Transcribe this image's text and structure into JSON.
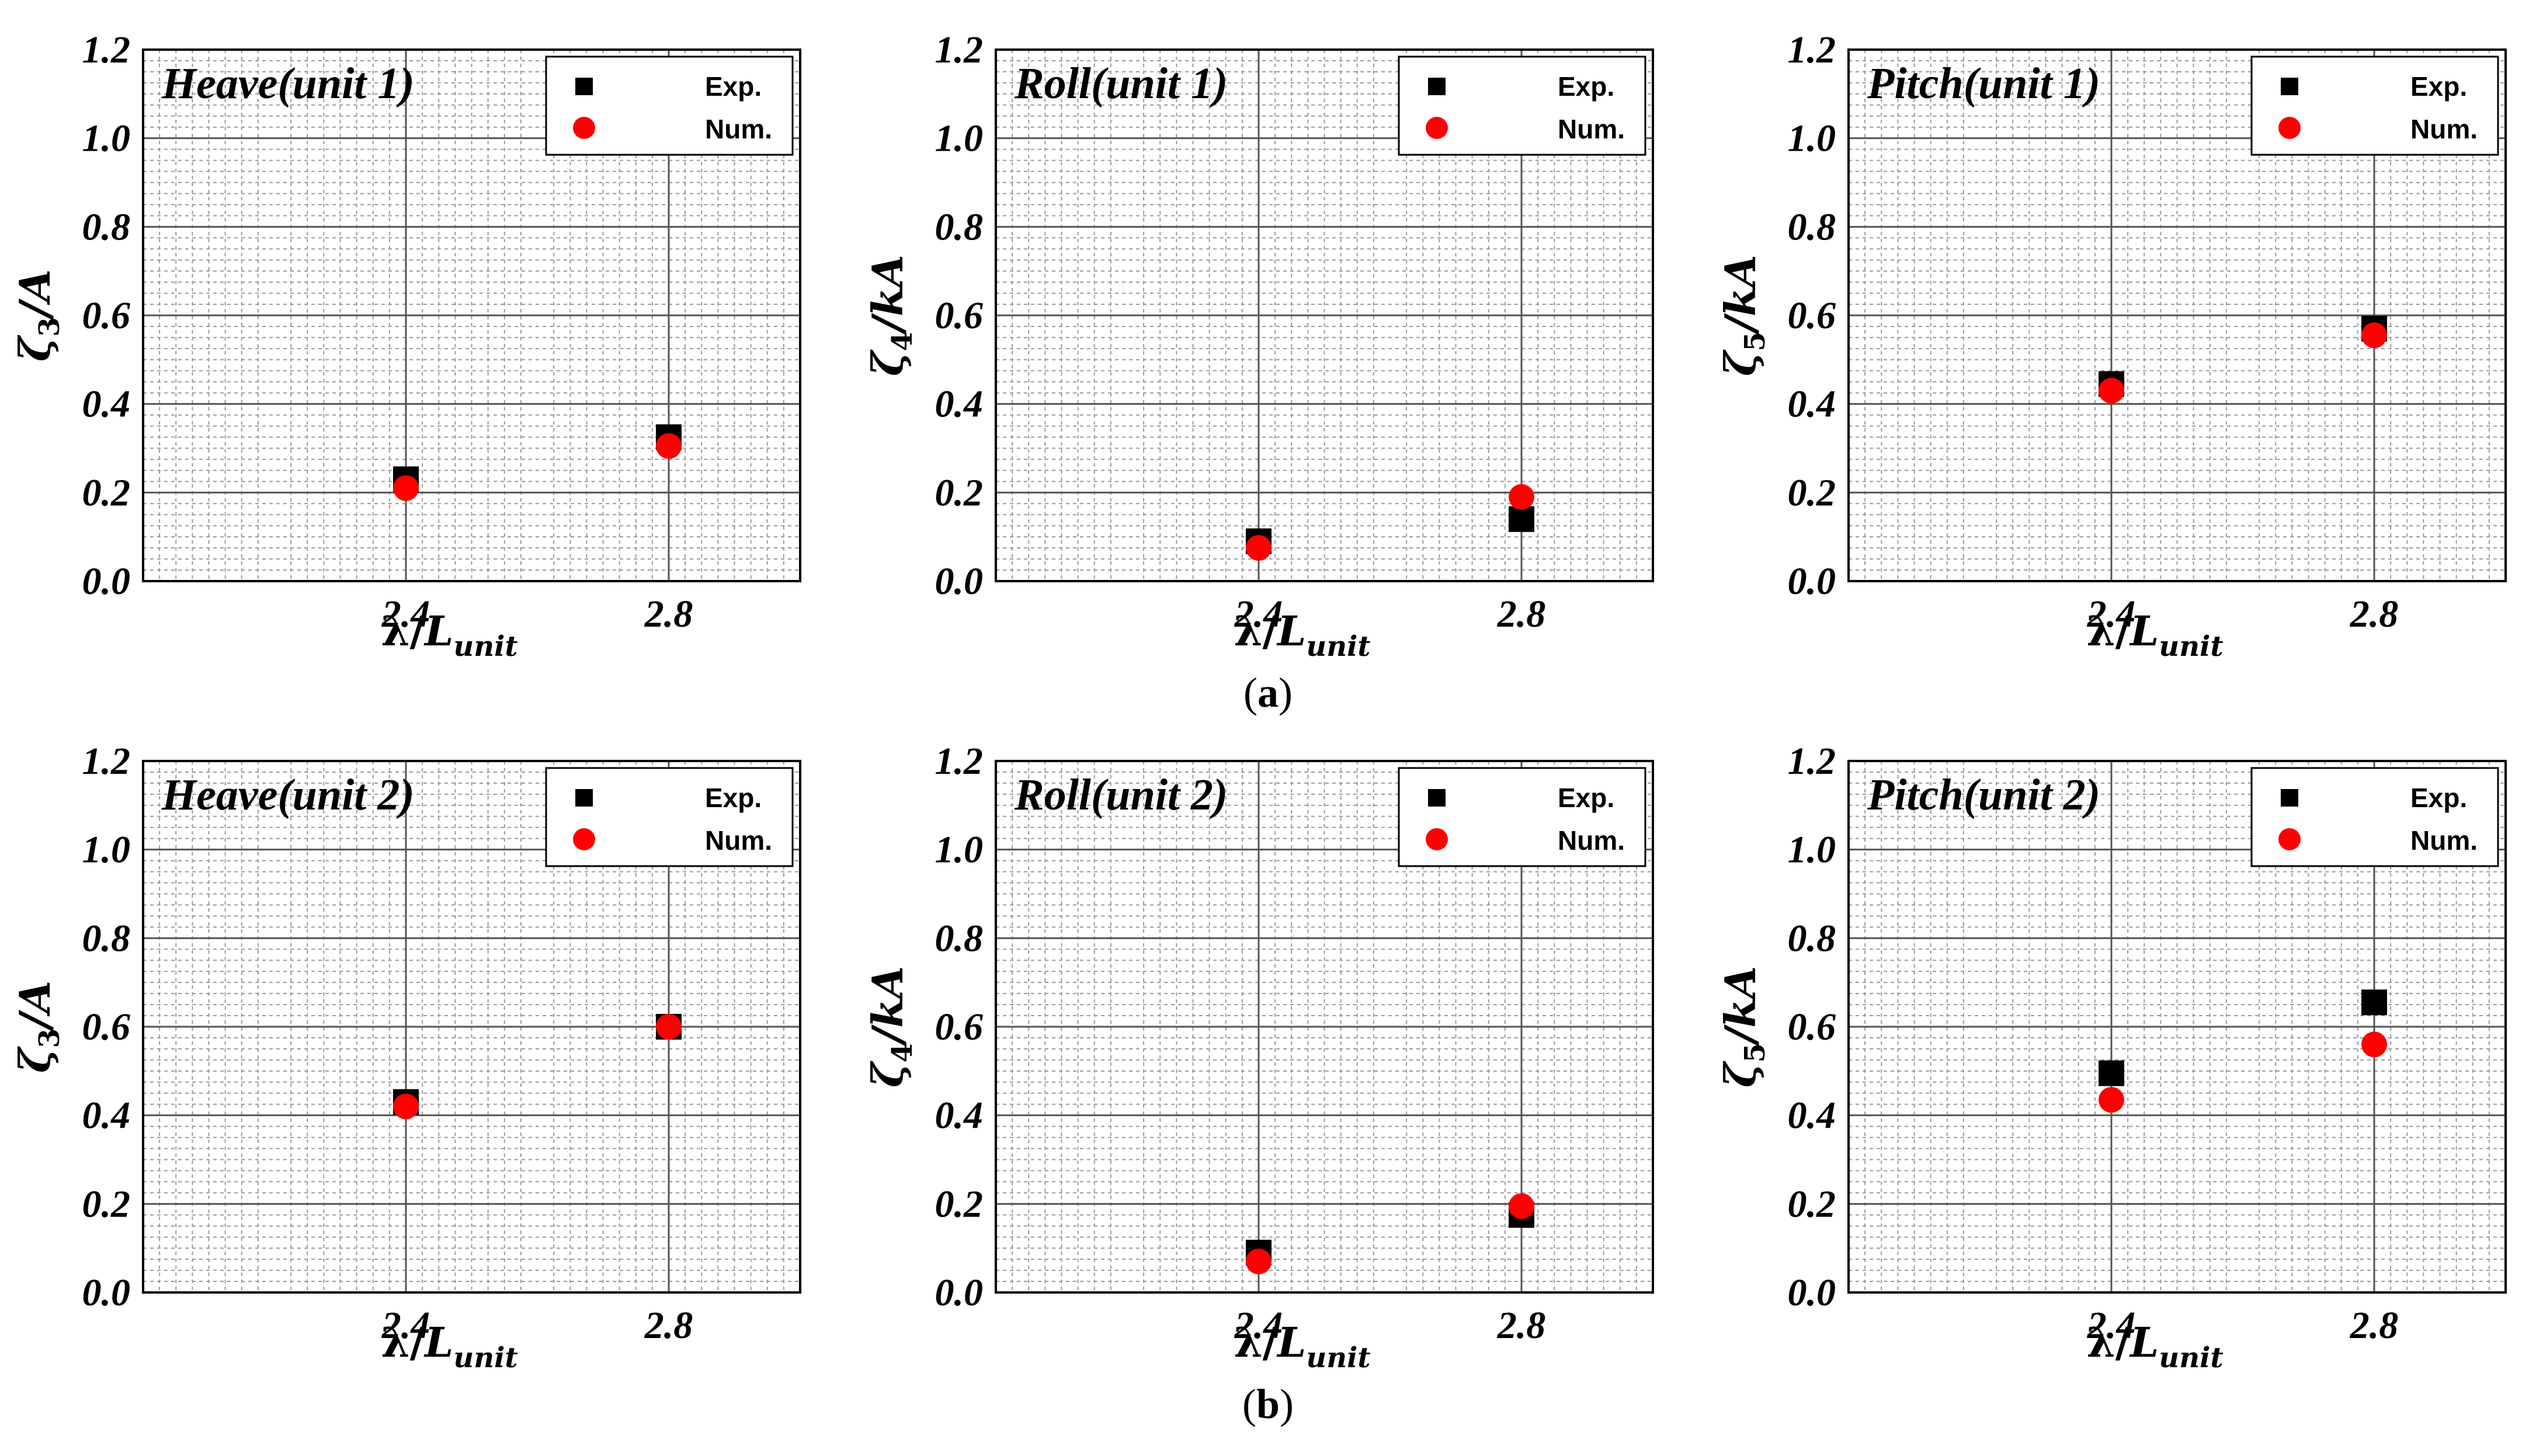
{
  "figure": {
    "captions": [
      "(a)",
      "(b)"
    ],
    "caption_letters": [
      "a",
      "b"
    ]
  },
  "colors": {
    "exp": "#000000",
    "num": "#ff0000",
    "grid_major": "#555555",
    "grid_minor": "#9a9a9a"
  },
  "chart_data": [
    {
      "type": "scatter",
      "title": "Heave(unit 1)",
      "ylabel": "ζ3/A",
      "ylabel_parts": {
        "main": "ζ",
        "sub": "3",
        "rest": "/A"
      },
      "xlabel": "λ/Lunit",
      "xlabel_parts": {
        "main": "λ/",
        "l": "L",
        "sub": "unit"
      },
      "xlim": [
        2.0,
        3.0
      ],
      "ylim": [
        0.0,
        1.2
      ],
      "xticks": [
        "2.4",
        "2.8"
      ],
      "yticks": [
        "0.0",
        "0.2",
        "0.4",
        "0.6",
        "0.8",
        "1.0",
        "1.2"
      ],
      "grid": true,
      "legend_position": "top-right",
      "series": [
        {
          "name": "Exp.",
          "marker": "square",
          "x": [
            2.4,
            2.8
          ],
          "y": [
            0.23,
            0.325
          ]
        },
        {
          "name": "Num.",
          "marker": "circle",
          "x": [
            2.4,
            2.8
          ],
          "y": [
            0.21,
            0.305
          ]
        }
      ]
    },
    {
      "type": "scatter",
      "title": "Roll(unit 1)",
      "ylabel": "ζ4/kA",
      "ylabel_parts": {
        "main": "ζ",
        "sub": "4",
        "rest": "/kA"
      },
      "xlabel": "λ/Lunit",
      "xlabel_parts": {
        "main": "λ/",
        "l": "L",
        "sub": "unit"
      },
      "xlim": [
        2.0,
        3.0
      ],
      "ylim": [
        0.0,
        1.2
      ],
      "xticks": [
        "2.4",
        "2.8"
      ],
      "yticks": [
        "0.0",
        "0.2",
        "0.4",
        "0.6",
        "0.8",
        "1.0",
        "1.2"
      ],
      "grid": true,
      "legend_position": "top-right",
      "series": [
        {
          "name": "Exp.",
          "marker": "square",
          "x": [
            2.4,
            2.8
          ],
          "y": [
            0.09,
            0.14
          ]
        },
        {
          "name": "Num.",
          "marker": "circle",
          "x": [
            2.4,
            2.8
          ],
          "y": [
            0.075,
            0.19
          ]
        }
      ]
    },
    {
      "type": "scatter",
      "title": "Pitch(unit 1)",
      "ylabel": "ζ5/kA",
      "ylabel_parts": {
        "main": "ζ",
        "sub": "5",
        "rest": "/kA"
      },
      "xlabel": "λ/Lunit",
      "xlabel_parts": {
        "main": "λ/",
        "l": "L",
        "sub": "unit"
      },
      "xlim": [
        2.0,
        3.0
      ],
      "ylim": [
        0.0,
        1.2
      ],
      "xticks": [
        "2.4",
        "2.8"
      ],
      "yticks": [
        "0.0",
        "0.2",
        "0.4",
        "0.6",
        "0.8",
        "1.0",
        "1.2"
      ],
      "grid": true,
      "legend_position": "top-right",
      "series": [
        {
          "name": "Exp.",
          "marker": "square",
          "x": [
            2.4,
            2.8
          ],
          "y": [
            0.445,
            0.57
          ]
        },
        {
          "name": "Num.",
          "marker": "circle",
          "x": [
            2.4,
            2.8
          ],
          "y": [
            0.43,
            0.555
          ]
        }
      ]
    },
    {
      "type": "scatter",
      "title": "Heave(unit 2)",
      "ylabel": "ζ3/A",
      "ylabel_parts": {
        "main": "ζ",
        "sub": "3",
        "rest": "/A"
      },
      "xlabel": "λ/Lunit",
      "xlabel_parts": {
        "main": "λ/",
        "l": "L",
        "sub": "unit"
      },
      "xlim": [
        2.0,
        3.0
      ],
      "ylim": [
        0.0,
        1.2
      ],
      "xticks": [
        "2.4",
        "2.8"
      ],
      "yticks": [
        "0.0",
        "0.2",
        "0.4",
        "0.6",
        "0.8",
        "1.0",
        "1.2"
      ],
      "grid": true,
      "legend_position": "top-right",
      "series": [
        {
          "name": "Exp.",
          "marker": "square",
          "x": [
            2.4,
            2.8
          ],
          "y": [
            0.43,
            0.6
          ]
        },
        {
          "name": "Num.",
          "marker": "circle",
          "x": [
            2.4,
            2.8
          ],
          "y": [
            0.42,
            0.6
          ]
        }
      ]
    },
    {
      "type": "scatter",
      "title": "Roll(unit 2)",
      "ylabel": "ζ4/kA",
      "ylabel_parts": {
        "main": "ζ",
        "sub": "4",
        "rest": "/kA"
      },
      "xlabel": "λ/Lunit",
      "xlabel_parts": {
        "main": "λ/",
        "l": "L",
        "sub": "unit"
      },
      "xlim": [
        2.0,
        3.0
      ],
      "ylim": [
        0.0,
        1.2
      ],
      "xticks": [
        "2.4",
        "2.8"
      ],
      "yticks": [
        "0.0",
        "0.2",
        "0.4",
        "0.6",
        "0.8",
        "1.0",
        "1.2"
      ],
      "grid": true,
      "legend_position": "top-right",
      "series": [
        {
          "name": "Exp.",
          "marker": "square",
          "x": [
            2.4,
            2.8
          ],
          "y": [
            0.09,
            0.175
          ]
        },
        {
          "name": "Num.",
          "marker": "circle",
          "x": [
            2.4,
            2.8
          ],
          "y": [
            0.07,
            0.195
          ]
        }
      ]
    },
    {
      "type": "scatter",
      "title": "Pitch(unit 2)",
      "ylabel": "ζ5/kA",
      "ylabel_parts": {
        "main": "ζ",
        "sub": "5",
        "rest": "/kA"
      },
      "xlabel": "λ/Lunit",
      "xlabel_parts": {
        "main": "λ/",
        "l": "L",
        "sub": "unit"
      },
      "xlim": [
        2.0,
        3.0
      ],
      "ylim": [
        0.0,
        1.2
      ],
      "xticks": [
        "2.4",
        "2.8"
      ],
      "yticks": [
        "0.0",
        "0.2",
        "0.4",
        "0.6",
        "0.8",
        "1.0",
        "1.2"
      ],
      "grid": true,
      "legend_position": "top-right",
      "series": [
        {
          "name": "Exp.",
          "marker": "square",
          "x": [
            2.4,
            2.8
          ],
          "y": [
            0.495,
            0.655
          ]
        },
        {
          "name": "Num.",
          "marker": "circle",
          "x": [
            2.4,
            2.8
          ],
          "y": [
            0.435,
            0.56
          ]
        }
      ]
    }
  ]
}
